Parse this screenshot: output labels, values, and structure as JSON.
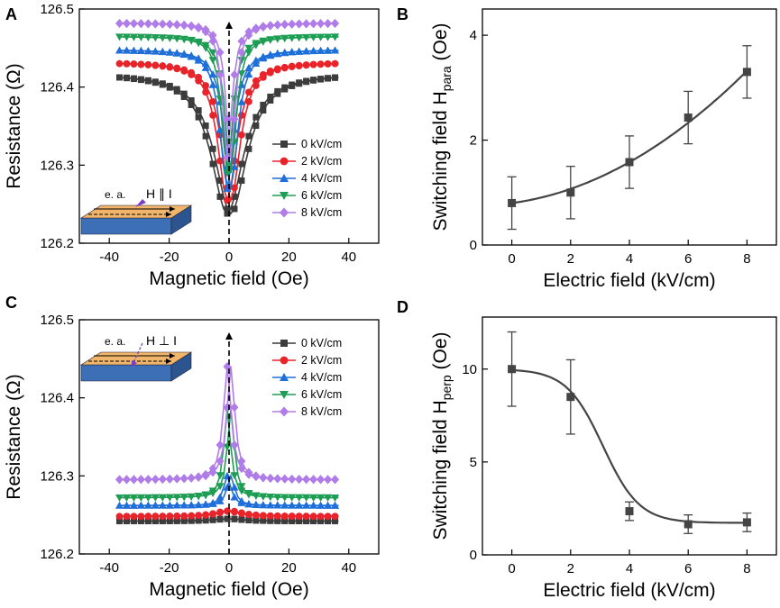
{
  "chart_data": [
    {
      "panel": "A",
      "type": "line",
      "xlabel": "Magnetic field (Oe)",
      "ylabel": "Resistance (Ω)",
      "xlim": [
        -50,
        50
      ],
      "ylim": [
        126.2,
        126.5
      ],
      "xticks": [
        "-40",
        "-20",
        "0",
        "20",
        "40"
      ],
      "yticks": [
        "126.2",
        "126.3",
        "126.4",
        "126.5"
      ],
      "legend": {
        "position": "bottom-right"
      },
      "inset": {
        "axis_label": "e. a.",
        "field_label": "H ∥ I"
      },
      "series": [
        {
          "name": "0 kV/cm",
          "color": "#3c3c3c",
          "marker": "square",
          "r0": 126.418,
          "r1": 126.238,
          "w": 6.5
        },
        {
          "name": "2 kV/cm",
          "color": "#e8242a",
          "marker": "circle",
          "r0": 126.432,
          "r1": 126.255,
          "w": 3.8
        },
        {
          "name": "4 kV/cm",
          "color": "#1e6fd9",
          "marker": "triangle-up",
          "r0": 126.448,
          "r1": 126.27,
          "w": 2.8
        },
        {
          "name": "6 kV/cm",
          "color": "#1e9e55",
          "marker": "triangle-down",
          "r0": 126.465,
          "r1": 126.29,
          "w": 2.2
        },
        {
          "name": "8 kV/cm",
          "color": "#b07ce8",
          "marker": "diamond",
          "r0": 126.482,
          "r1": 126.31,
          "w": 1.9
        }
      ]
    },
    {
      "panel": "B",
      "type": "scatter",
      "xlabel": "Electric field (kV/cm)",
      "ylabel_main": "Switching field H",
      "ylabel_sub": "para",
      "ylabel_unit": " (Oe)",
      "xlim": [
        -1,
        9
      ],
      "ylim": [
        0,
        4.5
      ],
      "xticks": [
        "0",
        "2",
        "4",
        "6",
        "8"
      ],
      "yticks": [
        "0",
        "2",
        "4"
      ],
      "x": [
        0,
        2,
        4,
        6,
        8
      ],
      "y": [
        0.8,
        1.0,
        1.58,
        2.43,
        3.3
      ],
      "err": [
        0.5,
        0.5,
        0.5,
        0.5,
        0.5
      ],
      "fit": "smooth"
    },
    {
      "panel": "C",
      "type": "line",
      "xlabel": "Magnetic field (Oe)",
      "ylabel": "Resistance (Ω)",
      "xlim": [
        -50,
        50
      ],
      "ylim": [
        126.2,
        126.5
      ],
      "xticks": [
        "-40",
        "-20",
        "0",
        "20",
        "40"
      ],
      "yticks": [
        "126.2",
        "126.3",
        "126.4",
        "126.5"
      ],
      "legend": {
        "position": "top-right"
      },
      "inset": {
        "axis_label": "e. a.",
        "field_label": "H ⊥ I"
      },
      "series": [
        {
          "name": "0 kV/cm",
          "color": "#3c3c3c",
          "marker": "square",
          "r0": 126.242,
          "r1": 126.245,
          "w": 6
        },
        {
          "name": "2 kV/cm",
          "color": "#e8242a",
          "marker": "circle",
          "r0": 126.248,
          "r1": 126.255,
          "w": 5
        },
        {
          "name": "4 kV/cm",
          "color": "#1e6fd9",
          "marker": "triangle-up",
          "r0": 126.262,
          "r1": 126.3,
          "w": 1.5
        },
        {
          "name": "6 kV/cm",
          "color": "#1e9e55",
          "marker": "triangle-down",
          "r0": 126.272,
          "r1": 126.385,
          "w": 1.4
        },
        {
          "name": "8 kV/cm",
          "color": "#b07ce8",
          "marker": "diamond",
          "r0": 126.295,
          "r1": 126.44,
          "w": 1.6
        }
      ]
    },
    {
      "panel": "D",
      "type": "scatter",
      "xlabel": "Electric field (kV/cm)",
      "ylabel_main": "Switching field H",
      "ylabel_sub": "perp",
      "ylabel_unit": " (Oe)",
      "xlim": [
        -1,
        9
      ],
      "ylim": [
        0,
        12.8
      ],
      "xticks": [
        "0",
        "2",
        "4",
        "6",
        "8"
      ],
      "yticks": [
        "0",
        "5",
        "10"
      ],
      "x": [
        0,
        2,
        4,
        6,
        8
      ],
      "y": [
        10.0,
        8.5,
        2.35,
        1.65,
        1.75
      ],
      "err": [
        2.0,
        2.0,
        0.5,
        0.5,
        0.5
      ],
      "fit": "sigmoid"
    }
  ]
}
